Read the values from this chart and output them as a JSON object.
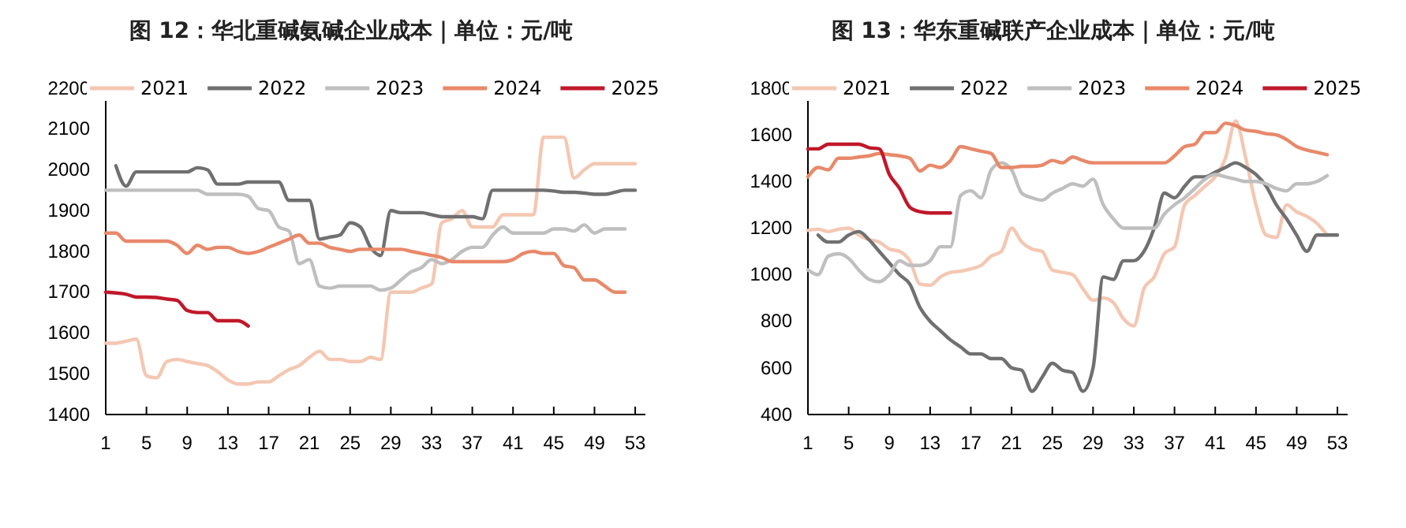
{
  "chart_data": [
    {
      "type": "line",
      "title": "图 12：华北重碱氨碱企业成本｜单位：元/吨",
      "xlim": [
        1,
        54
      ],
      "xticks": [
        1,
        5,
        9,
        13,
        17,
        21,
        25,
        29,
        33,
        37,
        41,
        45,
        49,
        53
      ],
      "ylim": [
        1400,
        2200
      ],
      "yticks": [
        1400,
        1500,
        1600,
        1700,
        1800,
        1900,
        2000,
        2100,
        2200
      ],
      "legend": "top",
      "grid": false,
      "series": [
        {
          "name": "2021",
          "color": "#f4c7b2",
          "x": [
            1,
            2,
            3,
            4,
            5,
            6,
            7,
            8,
            9,
            10,
            11,
            12,
            13,
            14,
            15,
            16,
            17,
            18,
            19,
            20,
            21,
            22,
            23,
            24,
            25,
            26,
            27,
            28,
            29,
            30,
            31,
            32,
            33,
            34,
            35,
            36,
            37,
            38,
            39,
            40,
            41,
            42,
            43,
            44,
            45,
            46,
            47,
            48,
            49,
            50,
            51,
            52,
            53
          ],
          "values": [
            1575,
            1575,
            1580,
            1585,
            1495,
            1490,
            1530,
            1535,
            1530,
            1525,
            1520,
            1505,
            1485,
            1475,
            1475,
            1480,
            1480,
            1495,
            1510,
            1520,
            1540,
            1555,
            1535,
            1535,
            1530,
            1530,
            1540,
            1535,
            1700,
            1700,
            1700,
            1710,
            1720,
            1870,
            1880,
            1900,
            1860,
            1860,
            1860,
            1890,
            1890,
            1890,
            1890,
            2080,
            2080,
            2080,
            1980,
            2000,
            2015,
            2015,
            2015,
            2015,
            2015
          ]
        },
        {
          "name": "2022",
          "color": "#707070",
          "x": [
            2,
            3,
            4,
            5,
            6,
            7,
            8,
            9,
            10,
            11,
            12,
            13,
            14,
            15,
            16,
            17,
            18,
            19,
            20,
            21,
            22,
            23,
            24,
            25,
            26,
            27,
            28,
            29,
            30,
            31,
            32,
            33,
            34,
            35,
            36,
            37,
            38,
            39,
            40,
            41,
            42,
            43,
            44,
            45,
            46,
            47,
            48,
            49,
            50,
            51,
            52,
            53
          ],
          "values": [
            2010,
            1960,
            1995,
            1995,
            1995,
            1995,
            1995,
            1995,
            2005,
            2000,
            1965,
            1965,
            1965,
            1970,
            1970,
            1970,
            1970,
            1925,
            1925,
            1925,
            1830,
            1835,
            1840,
            1870,
            1860,
            1810,
            1790,
            1900,
            1895,
            1895,
            1895,
            1890,
            1885,
            1885,
            1885,
            1885,
            1880,
            1950,
            1950,
            1950,
            1950,
            1950,
            1950,
            1948,
            1945,
            1945,
            1943,
            1940,
            1940,
            1945,
            1950,
            1950
          ]
        },
        {
          "name": "2023",
          "color": "#bfbfbf",
          "x": [
            1,
            2,
            3,
            4,
            5,
            6,
            7,
            8,
            9,
            10,
            11,
            12,
            13,
            14,
            15,
            16,
            17,
            18,
            19,
            20,
            21,
            22,
            23,
            24,
            25,
            26,
            27,
            28,
            29,
            30,
            31,
            32,
            33,
            34,
            35,
            36,
            37,
            38,
            39,
            40,
            41,
            42,
            43,
            44,
            45,
            46,
            47,
            48,
            49,
            50,
            51,
            52
          ],
          "values": [
            1950,
            1950,
            1950,
            1950,
            1950,
            1950,
            1950,
            1950,
            1950,
            1950,
            1940,
            1940,
            1940,
            1940,
            1935,
            1905,
            1900,
            1860,
            1850,
            1770,
            1780,
            1715,
            1710,
            1715,
            1715,
            1715,
            1715,
            1705,
            1710,
            1730,
            1750,
            1760,
            1780,
            1770,
            1780,
            1800,
            1810,
            1810,
            1840,
            1860,
            1845,
            1845,
            1845,
            1845,
            1855,
            1855,
            1850,
            1865,
            1845,
            1855,
            1855,
            1855
          ]
        },
        {
          "name": "2024",
          "color": "#e8896a",
          "x": [
            1,
            2,
            3,
            4,
            5,
            6,
            7,
            8,
            9,
            10,
            11,
            12,
            13,
            14,
            15,
            16,
            17,
            18,
            19,
            20,
            21,
            22,
            23,
            24,
            25,
            26,
            27,
            28,
            29,
            30,
            31,
            32,
            33,
            34,
            35,
            36,
            37,
            38,
            39,
            40,
            41,
            42,
            43,
            44,
            45,
            46,
            47,
            48,
            49,
            50,
            51,
            52
          ],
          "values": [
            1845,
            1845,
            1825,
            1825,
            1825,
            1825,
            1825,
            1815,
            1795,
            1815,
            1805,
            1810,
            1810,
            1800,
            1795,
            1800,
            1810,
            1820,
            1830,
            1840,
            1820,
            1820,
            1810,
            1805,
            1800,
            1805,
            1805,
            1805,
            1805,
            1805,
            1800,
            1795,
            1790,
            1785,
            1775,
            1775,
            1775,
            1775,
            1775,
            1775,
            1780,
            1795,
            1800,
            1795,
            1795,
            1765,
            1760,
            1730,
            1730,
            1715,
            1700,
            1700
          ]
        },
        {
          "name": "2025",
          "color": "#c0182a",
          "x": [
            1,
            2,
            3,
            4,
            5,
            6,
            7,
            8,
            9,
            10,
            11,
            12,
            13,
            14,
            15
          ],
          "values": [
            1700,
            1698,
            1695,
            1688,
            1688,
            1687,
            1683,
            1680,
            1655,
            1650,
            1650,
            1630,
            1630,
            1630,
            1617
          ]
        }
      ]
    },
    {
      "type": "line",
      "title": "图 13：华东重碱联产企业成本｜单位：元/吨",
      "xlim": [
        1,
        54
      ],
      "xticks": [
        1,
        5,
        9,
        13,
        17,
        21,
        25,
        29,
        33,
        37,
        41,
        45,
        49,
        53
      ],
      "ylim": [
        400,
        1800
      ],
      "yticks": [
        400,
        600,
        800,
        1000,
        1200,
        1400,
        1600,
        1800
      ],
      "legend": "top",
      "grid": false,
      "series": [
        {
          "name": "2021",
          "color": "#f4c7b2",
          "x": [
            1,
            2,
            3,
            4,
            5,
            6,
            7,
            8,
            9,
            10,
            11,
            12,
            13,
            14,
            15,
            16,
            17,
            18,
            19,
            20,
            21,
            22,
            23,
            24,
            25,
            26,
            27,
            28,
            29,
            30,
            31,
            32,
            33,
            34,
            35,
            36,
            37,
            38,
            39,
            40,
            41,
            42,
            43,
            44,
            45,
            46,
            47,
            48,
            49,
            50,
            51,
            52
          ],
          "values": [
            1190,
            1195,
            1185,
            1195,
            1200,
            1170,
            1150,
            1140,
            1110,
            1100,
            1060,
            960,
            955,
            990,
            1010,
            1015,
            1025,
            1040,
            1080,
            1100,
            1200,
            1140,
            1110,
            1100,
            1020,
            1010,
            1000,
            940,
            890,
            900,
            880,
            810,
            780,
            940,
            990,
            1090,
            1120,
            1300,
            1340,
            1380,
            1420,
            1500,
            1660,
            1500,
            1300,
            1170,
            1160,
            1300,
            1270,
            1250,
            1220,
            1170
          ]
        },
        {
          "name": "2022",
          "color": "#707070",
          "x": [
            2,
            3,
            4,
            5,
            6,
            7,
            8,
            9,
            10,
            11,
            12,
            13,
            14,
            15,
            16,
            17,
            18,
            19,
            20,
            21,
            22,
            23,
            24,
            25,
            26,
            27,
            28,
            29,
            30,
            31,
            32,
            33,
            34,
            35,
            36,
            37,
            38,
            39,
            40,
            41,
            42,
            43,
            44,
            45,
            46,
            47,
            48,
            49,
            50,
            51,
            52,
            53
          ],
          "values": [
            1170,
            1140,
            1140,
            1170,
            1185,
            1150,
            1100,
            1050,
            1000,
            960,
            860,
            800,
            760,
            720,
            690,
            660,
            660,
            640,
            640,
            600,
            590,
            500,
            560,
            620,
            590,
            580,
            500,
            600,
            990,
            980,
            1060,
            1060,
            1100,
            1200,
            1350,
            1330,
            1380,
            1420,
            1420,
            1440,
            1460,
            1480,
            1460,
            1430,
            1380,
            1300,
            1240,
            1170,
            1100,
            1170,
            1170,
            1170
          ]
        },
        {
          "name": "2023",
          "color": "#bfbfbf",
          "x": [
            1,
            2,
            3,
            4,
            5,
            6,
            7,
            8,
            9,
            10,
            11,
            12,
            13,
            14,
            15,
            16,
            17,
            18,
            19,
            20,
            21,
            22,
            23,
            24,
            25,
            26,
            27,
            28,
            29,
            30,
            31,
            32,
            33,
            34,
            35,
            36,
            37,
            38,
            39,
            40,
            41,
            42,
            43,
            44,
            45,
            46,
            47,
            48,
            49,
            50,
            51,
            52
          ],
          "values": [
            1020,
            1000,
            1080,
            1090,
            1070,
            1020,
            980,
            970,
            1000,
            1060,
            1040,
            1040,
            1060,
            1120,
            1120,
            1340,
            1360,
            1330,
            1450,
            1480,
            1450,
            1350,
            1330,
            1320,
            1350,
            1370,
            1390,
            1380,
            1410,
            1300,
            1240,
            1200,
            1200,
            1200,
            1200,
            1260,
            1300,
            1330,
            1370,
            1410,
            1430,
            1420,
            1410,
            1400,
            1400,
            1390,
            1370,
            1360,
            1390,
            1390,
            1400,
            1425
          ]
        },
        {
          "name": "2024",
          "color": "#e8896a",
          "x": [
            1,
            2,
            3,
            4,
            5,
            6,
            7,
            8,
            9,
            10,
            11,
            12,
            13,
            14,
            15,
            16,
            17,
            18,
            19,
            20,
            21,
            22,
            23,
            24,
            25,
            26,
            27,
            28,
            29,
            30,
            31,
            32,
            33,
            34,
            35,
            36,
            37,
            38,
            39,
            40,
            41,
            42,
            43,
            44,
            45,
            46,
            47,
            48,
            49,
            50,
            51,
            52
          ],
          "values": [
            1420,
            1460,
            1450,
            1500,
            1500,
            1505,
            1510,
            1520,
            1515,
            1510,
            1500,
            1445,
            1470,
            1460,
            1490,
            1550,
            1540,
            1530,
            1520,
            1460,
            1460,
            1465,
            1465,
            1470,
            1490,
            1480,
            1505,
            1490,
            1480,
            1480,
            1480,
            1480,
            1480,
            1480,
            1480,
            1480,
            1510,
            1550,
            1560,
            1610,
            1610,
            1650,
            1640,
            1620,
            1615,
            1605,
            1600,
            1580,
            1550,
            1535,
            1525,
            1515
          ]
        },
        {
          "name": "2025",
          "color": "#c0182a",
          "x": [
            1,
            2,
            3,
            4,
            5,
            6,
            7,
            8,
            9,
            10,
            11,
            12,
            13,
            14,
            15
          ],
          "values": [
            1540,
            1540,
            1560,
            1560,
            1560,
            1560,
            1545,
            1540,
            1430,
            1370,
            1290,
            1270,
            1265,
            1265,
            1265
          ]
        }
      ]
    }
  ]
}
